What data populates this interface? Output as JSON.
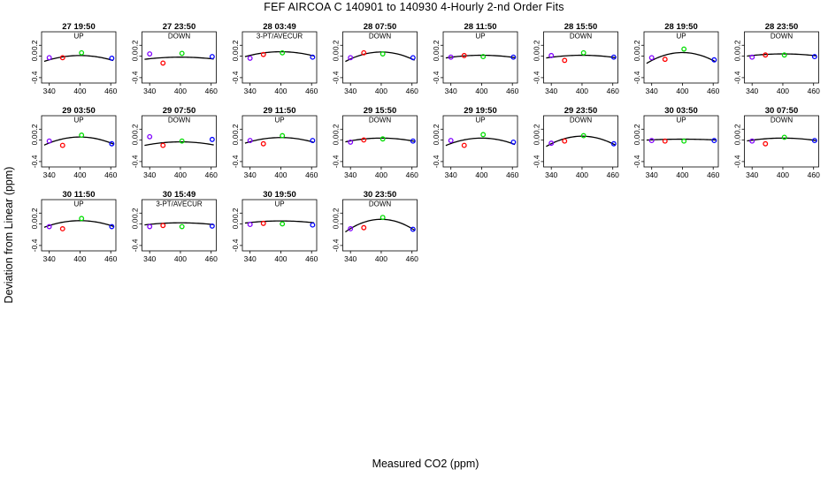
{
  "title": "FEF   AIRCOA C   140901 to 140930   4-Hourly 2-nd Order Fits",
  "xlabel": "Measured CO2 (ppm)",
  "ylabel": "Deviation from Linear (ppm)",
  "colors": {
    "standard_1": "#8000ff",
    "standard_2": "#ff0000",
    "standard_3": "#00dd00",
    "standard_4": "#0000ff",
    "fit_line": "#000000"
  },
  "chart_data": {
    "type": "scatter",
    "layout": "small-multiples",
    "xlim": [
      325,
      470
    ],
    "ylim": [
      -0.5,
      0.45
    ],
    "xticks": [
      340,
      400,
      460
    ],
    "yticks": [
      -0.4,
      0.0,
      0.2
    ],
    "ytick_labels": [
      "-0.4",
      "0.0",
      "0.2"
    ],
    "grid": false,
    "legend": "none",
    "panels": [
      {
        "title": "27 19:50",
        "label": "UP",
        "x": [
          340,
          366,
          403,
          462
        ],
        "y": [
          -0.03,
          -0.03,
          0.06,
          -0.04
        ],
        "fit": [
          0.01,
          -0.0031,
          2.21e-05
        ]
      },
      {
        "title": "27 23:50",
        "label": "DOWN",
        "x": [
          340,
          366,
          403,
          462
        ],
        "y": [
          0.04,
          -0.13,
          0.05,
          -0.01
        ],
        "fit": [
          -0.02,
          -0.0008,
          8.2e-06
        ]
      },
      {
        "title": "28 03:49",
        "label": "3-PT/AVECUR",
        "x": [
          340,
          366,
          403,
          462
        ],
        "y": [
          -0.04,
          0.03,
          0.06,
          -0.02
        ],
        "fit": [
          0.08,
          -0.0019,
          1.87e-05
        ]
      },
      {
        "title": "28 07:50",
        "label": "DOWN",
        "x": [
          340,
          366,
          403,
          462
        ],
        "y": [
          -0.03,
          0.06,
          0.04,
          -0.03
        ],
        "fit": [
          0.075,
          -0.003,
          3.59e-05
        ]
      },
      {
        "title": "28 11:50",
        "label": "UP",
        "x": [
          340,
          366,
          403,
          462
        ],
        "y": [
          -0.02,
          0.01,
          -0.01,
          -0.02
        ],
        "fit": [
          0.015,
          -0.0013,
          1.02e-05
        ]
      },
      {
        "title": "28 15:50",
        "label": "DOWN",
        "x": [
          340,
          366,
          403,
          462
        ],
        "y": [
          0.01,
          -0.08,
          0.06,
          -0.02
        ],
        "fit": [
          0.015,
          -0.0014,
          1.02e-05
        ]
      },
      {
        "title": "28 19:50",
        "label": "UP",
        "x": [
          340,
          366,
          403,
          462
        ],
        "y": [
          -0.03,
          -0.06,
          0.13,
          -0.07
        ],
        "fit": [
          0.065,
          -0.0045,
          4.1e-05
        ]
      },
      {
        "title": "28 23:50",
        "label": "DOWN",
        "x": [
          340,
          366,
          403,
          462
        ],
        "y": [
          -0.02,
          0.02,
          0.02,
          -0.01
        ],
        "fit": [
          0.04,
          -0.0011,
          8.2e-06
        ]
      },
      {
        "title": "29 03:50",
        "label": "UP",
        "x": [
          340,
          366,
          403,
          462
        ],
        "y": [
          -0.02,
          -0.1,
          0.09,
          -0.07
        ],
        "fit": [
          0.055,
          -0.0033,
          3.07e-05
        ]
      },
      {
        "title": "29 07:50",
        "label": "DOWN",
        "x": [
          340,
          366,
          403,
          462
        ],
        "y": [
          0.06,
          -0.1,
          -0.02,
          0.01
        ],
        "fit": [
          -0.035,
          -0.0007,
          1.34e-05
        ]
      },
      {
        "title": "29 11:50",
        "label": "UP",
        "x": [
          340,
          366,
          403,
          462
        ],
        "y": [
          -0.01,
          -0.07,
          0.08,
          -0.01
        ],
        "fit": [
          0.045,
          -0.0023,
          2.14e-05
        ]
      },
      {
        "title": "29 15:50",
        "label": "DOWN",
        "x": [
          340,
          366,
          403,
          462
        ],
        "y": [
          -0.04,
          0.0,
          0.02,
          -0.02
        ],
        "fit": [
          0.035,
          -0.0016,
          1.42e-05
        ]
      },
      {
        "title": "29 19:50",
        "label": "UP",
        "x": [
          340,
          366,
          403,
          462
        ],
        "y": [
          -0.01,
          -0.1,
          0.1,
          -0.04
        ],
        "fit": [
          0.035,
          -0.0031,
          2.81e-05
        ]
      },
      {
        "title": "29 23:50",
        "label": "DOWN",
        "x": [
          340,
          366,
          403,
          462
        ],
        "y": [
          -0.06,
          -0.02,
          0.08,
          -0.07
        ],
        "fit": [
          0.07,
          -0.0039,
          3.89e-05
        ]
      },
      {
        "title": "30 03:50",
        "label": "UP",
        "x": [
          340,
          366,
          403,
          462
        ],
        "y": [
          -0.01,
          -0.02,
          -0.02,
          -0.01
        ],
        "fit": [
          0.015,
          -0.0004,
          3.4e-06
        ]
      },
      {
        "title": "30 07:50",
        "label": "DOWN",
        "x": [
          340,
          366,
          403,
          462
        ],
        "y": [
          -0.02,
          -0.07,
          0.05,
          -0.01
        ],
        "fit": [
          0.035,
          -0.0013,
          1.07e-05
        ]
      },
      {
        "title": "30 11:50",
        "label": "UP",
        "x": [
          340,
          366,
          403,
          462
        ],
        "y": [
          -0.05,
          -0.09,
          0.1,
          -0.05
        ],
        "fit": [
          0.06,
          -0.0031,
          2.51e-05
        ]
      },
      {
        "title": "30 15:49",
        "label": "3-PT/AVECUR",
        "x": [
          340,
          366,
          403,
          462
        ],
        "y": [
          -0.05,
          -0.03,
          -0.05,
          -0.04
        ],
        "fit": [
          0.02,
          -0.0011,
          7.8e-06
        ]
      },
      {
        "title": "30 19:50",
        "label": "UP",
        "x": [
          340,
          366,
          403,
          462
        ],
        "y": [
          -0.01,
          0.01,
          0.0,
          -0.02
        ],
        "fit": [
          0.055,
          -0.0008,
          8.1e-06
        ]
      },
      {
        "title": "30 23:50",
        "label": "DOWN",
        "x": [
          340,
          366,
          403,
          462
        ],
        "y": [
          -0.09,
          -0.07,
          0.12,
          -0.1
        ],
        "fit": [
          0.085,
          -0.0055,
          4.78e-05
        ]
      }
    ]
  }
}
